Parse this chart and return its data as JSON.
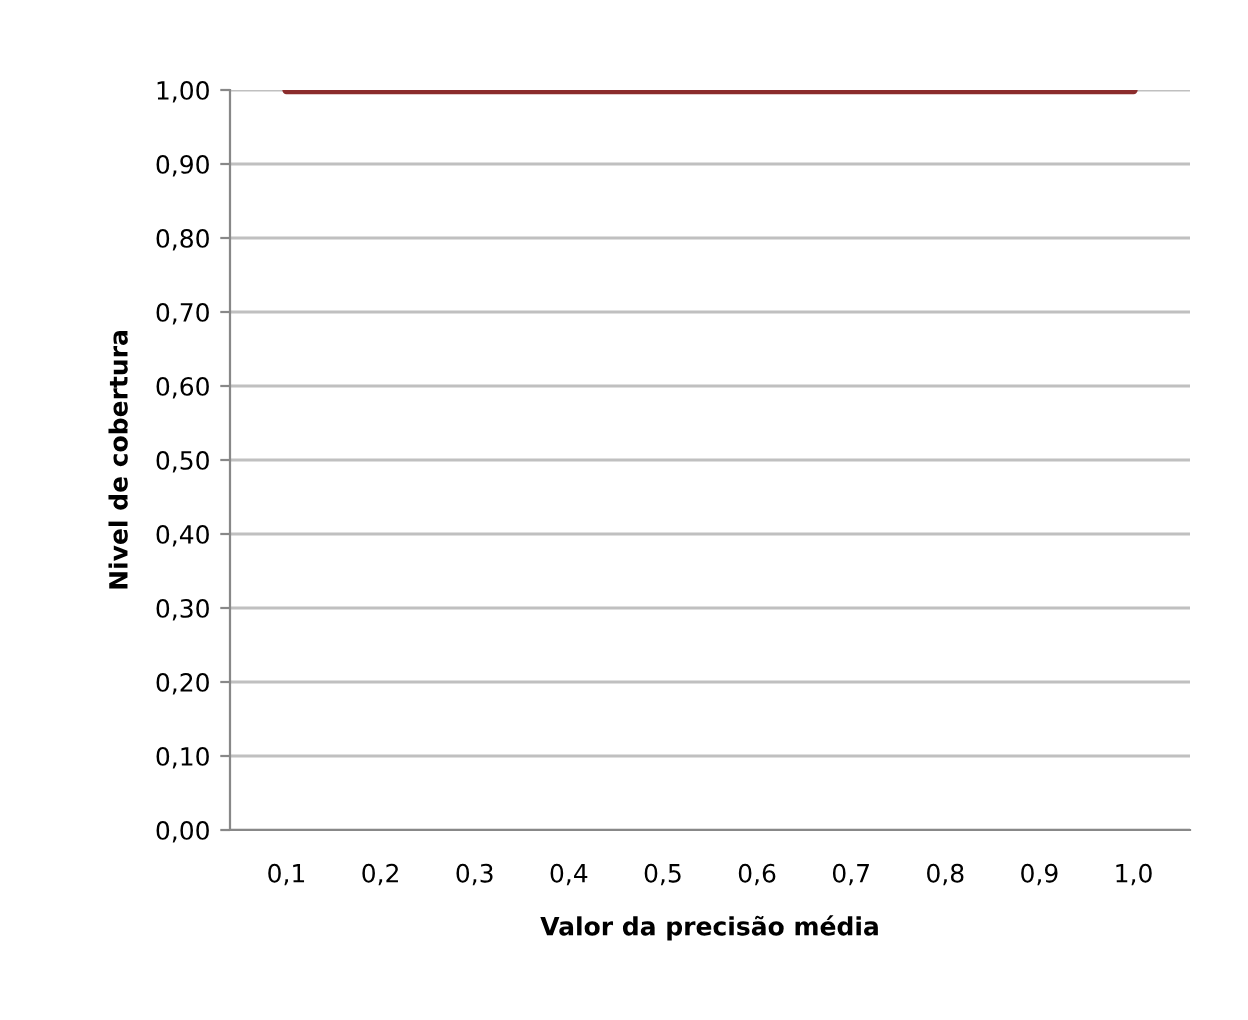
{
  "chart_data": {
    "type": "line",
    "xlabel": "Valor da precisão média",
    "ylabel": "Nivel de cobertura",
    "categories": [
      "0,1",
      "0,2",
      "0,3",
      "0,4",
      "0,5",
      "0,6",
      "0,7",
      "0,8",
      "0,9",
      "1,0"
    ],
    "series": [
      {
        "color": "#8b2c2c",
        "values": [
          1,
          1,
          1,
          1,
          1,
          1,
          1,
          1,
          1,
          1
        ]
      }
    ],
    "ylim": [
      0,
      1
    ],
    "yticks": [
      {
        "value": 0,
        "label": "0,00"
      },
      {
        "value": 0.1,
        "label": "0,10"
      },
      {
        "value": 0.2,
        "label": "0,20"
      },
      {
        "value": 0.3,
        "label": "0,30"
      },
      {
        "value": 0.4,
        "label": "0,40"
      },
      {
        "value": 0.5,
        "label": "0,50"
      },
      {
        "value": 0.6,
        "label": "0,60"
      },
      {
        "value": 0.7,
        "label": "0,70"
      },
      {
        "value": 0.8,
        "label": "0,80"
      },
      {
        "value": 0.9,
        "label": "0,90"
      },
      {
        "value": 1,
        "label": "1,00"
      }
    ],
    "grid": "y",
    "legend": false,
    "marker": "none",
    "line_style": "solid"
  }
}
